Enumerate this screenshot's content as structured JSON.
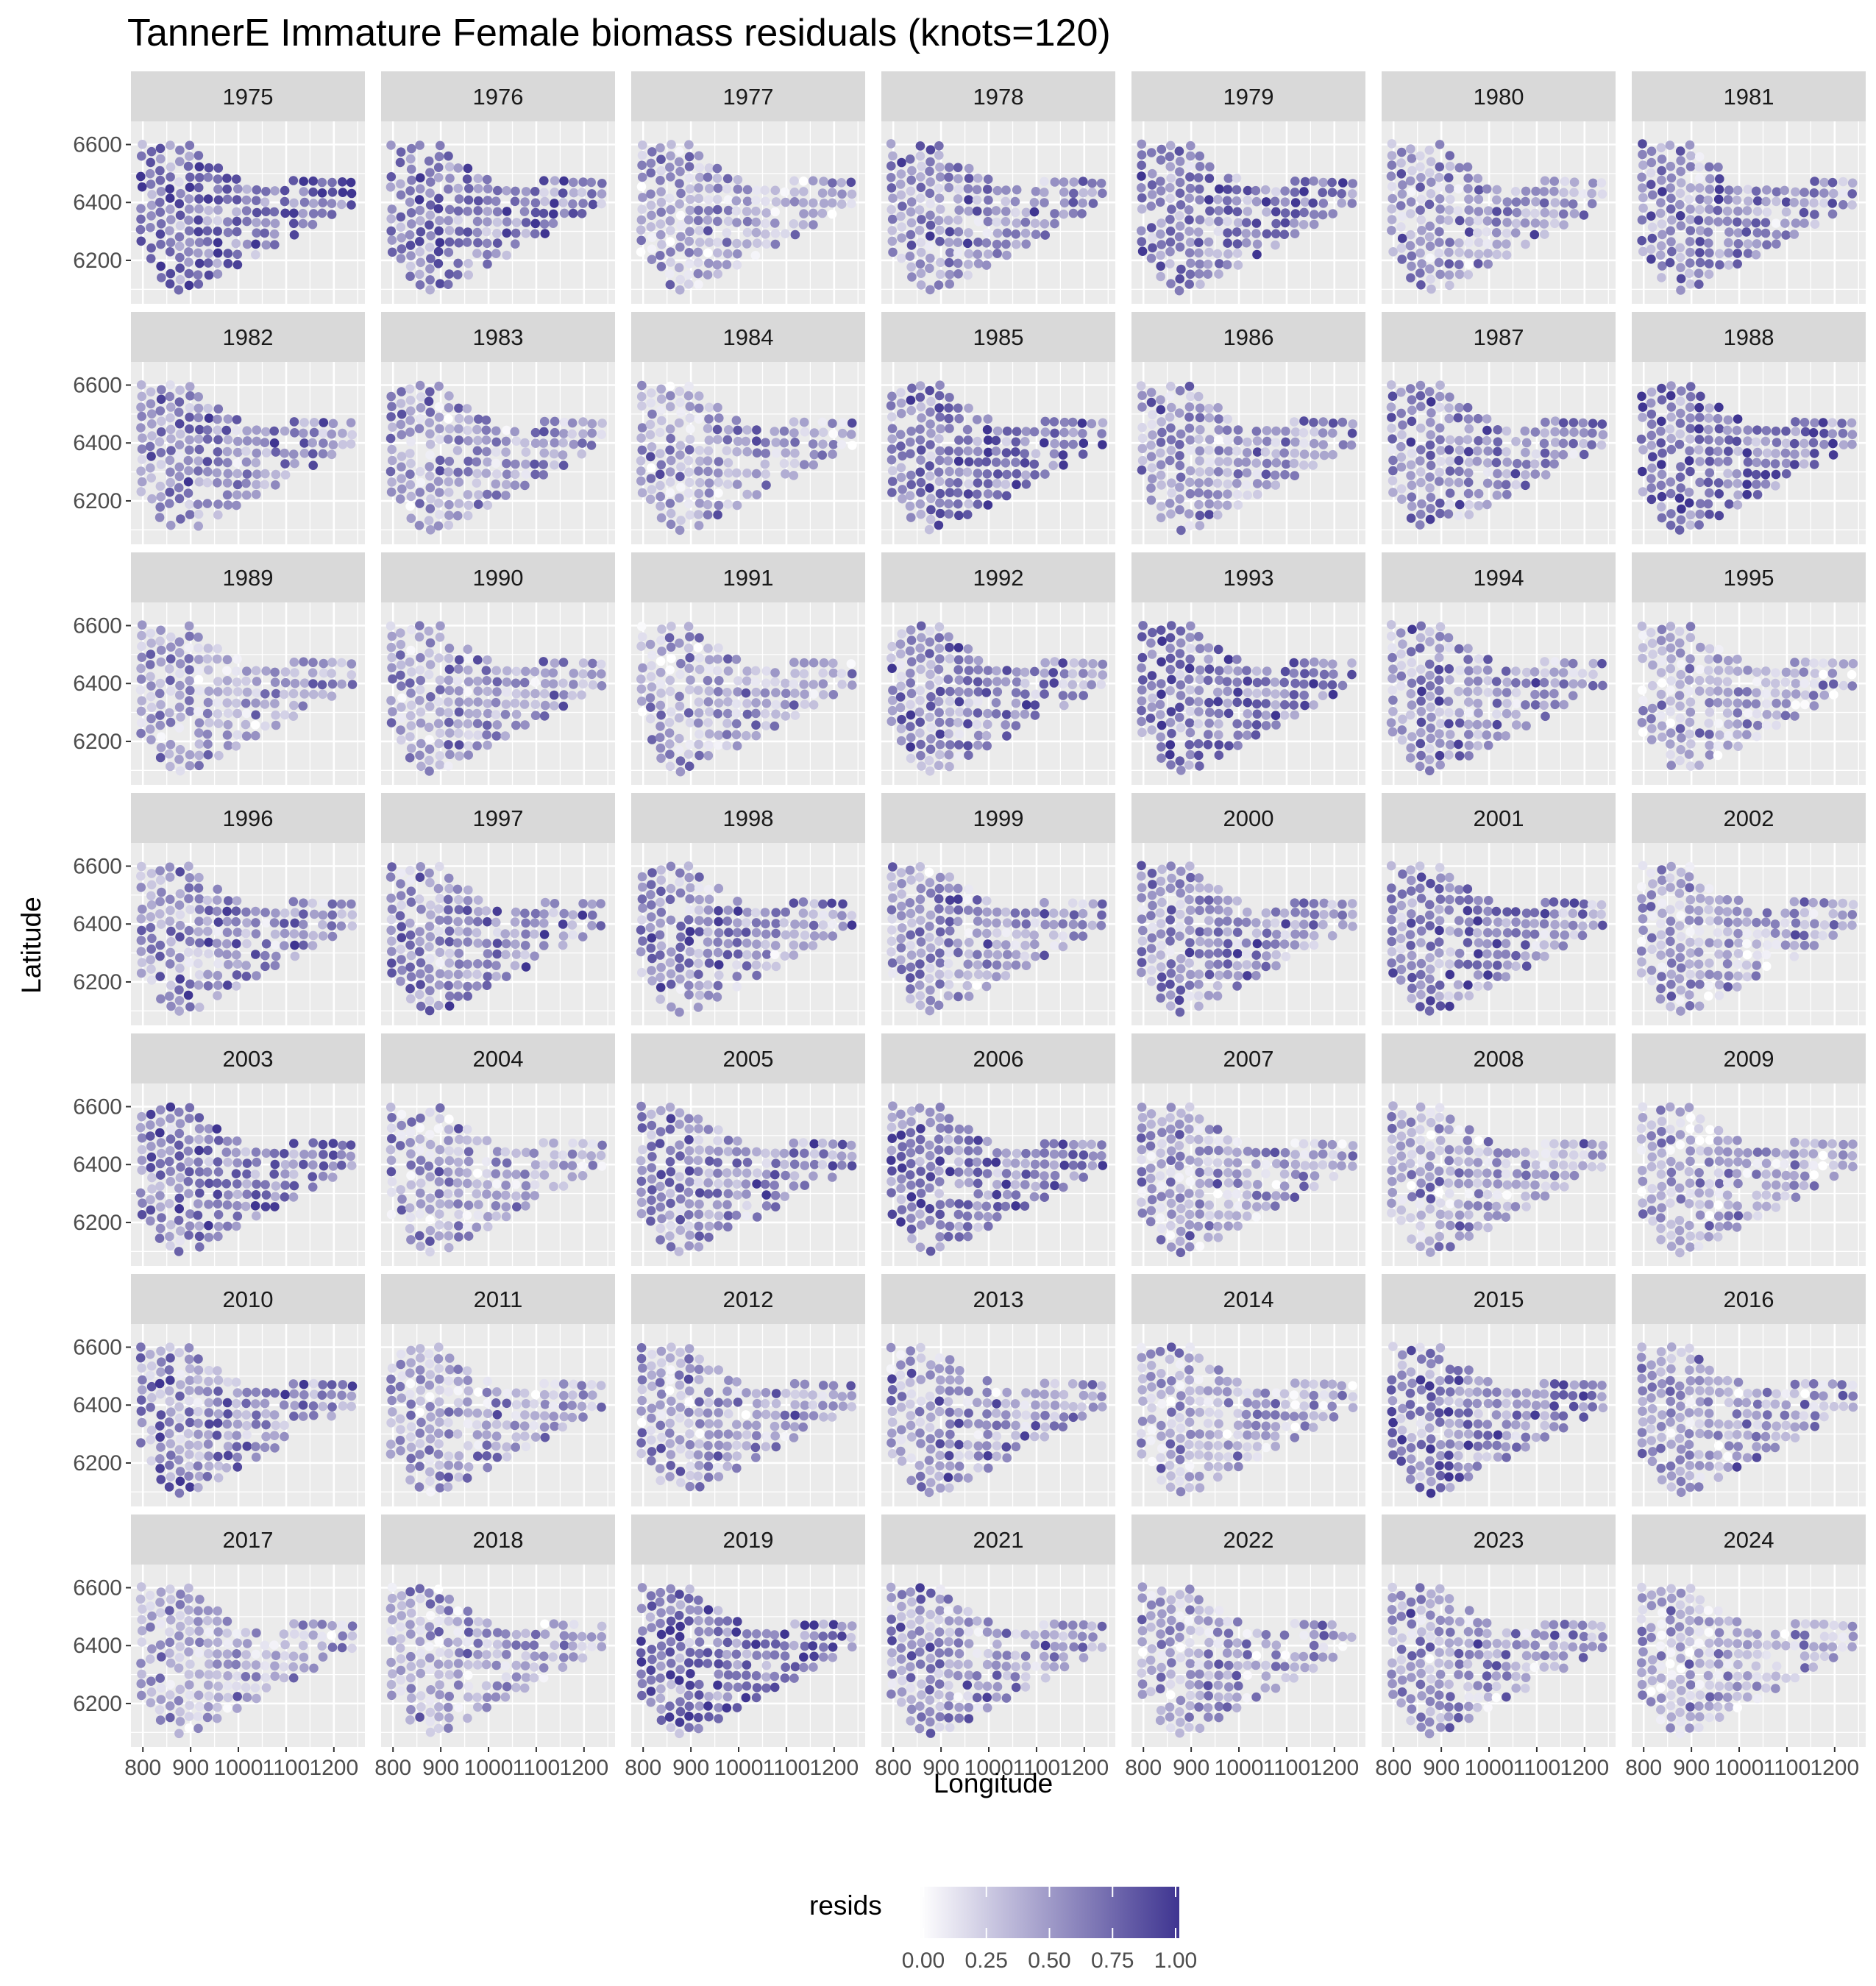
{
  "chart_data": {
    "type": "scatter",
    "title": "TannerE Immature Female biomass residuals (knots=120)",
    "xlabel": "Longitude",
    "ylabel": "Latitude",
    "facet_by": "year",
    "facets": [
      "1975",
      "1976",
      "1977",
      "1978",
      "1979",
      "1980",
      "1981",
      "1982",
      "1983",
      "1984",
      "1985",
      "1986",
      "1987",
      "1988",
      "1989",
      "1990",
      "1991",
      "1992",
      "1993",
      "1994",
      "1995",
      "1996",
      "1997",
      "1998",
      "1999",
      "2000",
      "2001",
      "2002",
      "2003",
      "2004",
      "2005",
      "2006",
      "2007",
      "2008",
      "2009",
      "2010",
      "2011",
      "2012",
      "2013",
      "2014",
      "2015",
      "2016",
      "2017",
      "2018",
      "2019",
      "2021",
      "2022",
      "2023",
      "2024"
    ],
    "facet_layout": {
      "columns": 7,
      "rows": 7
    },
    "xlim": [
      775,
      1265
    ],
    "ylim": [
      6050,
      6680
    ],
    "x_ticks": [
      800,
      900,
      1000,
      1100,
      1200
    ],
    "x_tick_labels": [
      "800",
      "900",
      "1000",
      "1100",
      "1200"
    ],
    "y_ticks": [
      6200,
      6400,
      6600
    ],
    "y_tick_labels": [
      "6200",
      "6400",
      "6600"
    ],
    "grid": true,
    "survey_grid": {
      "columns_x": [
        797,
        817,
        837,
        857,
        877,
        897,
        917,
        937,
        957,
        977,
        997,
        1017,
        1037,
        1057,
        1077,
        1097,
        1117,
        1137,
        1157,
        1177,
        1197,
        1217,
        1237
      ],
      "spacing_y": 37
    },
    "color_scale": {
      "name": "resids",
      "low_color": "#ffffff",
      "high_color": "#3f3591",
      "limits": [
        0,
        1
      ],
      "breaks": [
        0,
        0.25,
        0.5,
        0.75,
        1
      ],
      "break_labels": [
        "0.00",
        "0.25",
        "0.50",
        "0.75",
        "1.00"
      ],
      "legend_position": "bottom"
    },
    "panel_background": "#ebebeb",
    "strip_background": "#d9d9d9",
    "gridline_color": "#ffffff"
  }
}
